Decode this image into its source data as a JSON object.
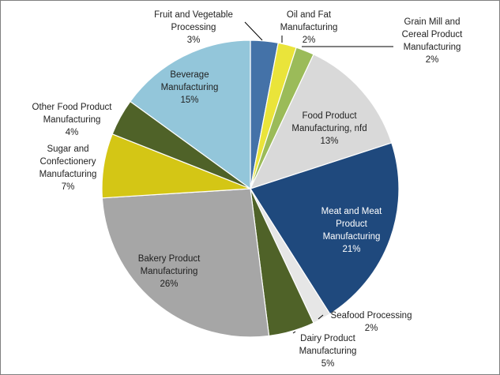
{
  "chart_data": {
    "type": "pie",
    "title": "",
    "categories": [
      "Fruit and Vegetable Processing",
      "Oil and Fat Manufacturing",
      "Grain Mill and Cereal Product Manufacturing",
      "Food Product Manufacturing, nfd",
      "Meat and Meat Product Manufacturing",
      "Seafood Processing",
      "Dairy Product Manufacturing",
      "Bakery Product Manufacturing",
      "Sugar and Confectionery Manufacturing",
      "Other Food Product Manufacturing",
      "Beverage Manufacturing"
    ],
    "values": [
      3,
      2,
      2,
      13,
      21,
      2,
      5,
      26,
      7,
      4,
      15
    ],
    "value_labels": [
      "3%",
      "2%",
      "2%",
      "13%",
      "21%",
      "2%",
      "5%",
      "26%",
      "7%",
      "4%",
      "15%"
    ],
    "label_lines": [
      [
        "Fruit and Vegetable",
        "Processing"
      ],
      [
        "Oil and Fat",
        "Manufacturing"
      ],
      [
        "Grain Mill and",
        "Cereal Product",
        "Manufacturing"
      ],
      [
        "Food Product",
        "Manufacturing, nfd"
      ],
      [
        "Meat and Meat",
        "Product",
        "Manufacturing"
      ],
      [
        "Seafood Processing"
      ],
      [
        "Dairy Product",
        "Manufacturing"
      ],
      [
        "Bakery Product",
        "Manufacturing"
      ],
      [
        "Sugar and",
        "Confectionery",
        "Manufacturing"
      ],
      [
        "Other Food Product",
        "Manufacturing"
      ],
      [
        "Beverage",
        "Manufacturing"
      ]
    ],
    "colors": [
      "#4472A8",
      "#EAE43A",
      "#9BBB59",
      "#D9D9D9",
      "#1F497D",
      "#E6E6E6",
      "#4F6228",
      "#A6A6A6",
      "#D4C615",
      "#4F6228",
      "#93C6DA"
    ],
    "light_label": [
      false,
      false,
      false,
      false,
      true,
      false,
      false,
      false,
      false,
      false,
      false
    ],
    "legend": "none"
  }
}
